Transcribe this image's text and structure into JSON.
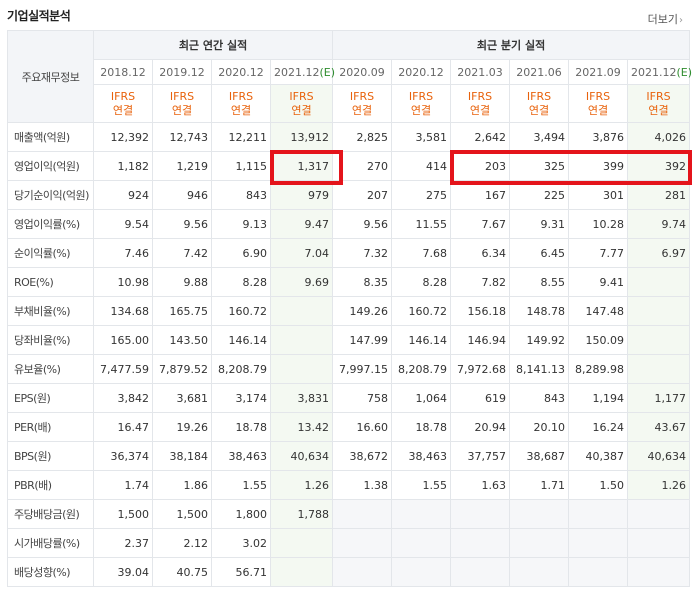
{
  "header": {
    "title": "기업실적분석",
    "more_label": "더보기",
    "more_icon": "chevron-right-icon"
  },
  "table": {
    "corner_label": "주요재무정보",
    "group_annual": "최근 연간 실적",
    "group_quarter": "최근 분기 실적",
    "annual_periods": [
      "2018.12",
      "2019.12",
      "2020.12",
      "2021.12"
    ],
    "quarter_periods": [
      "2020.09",
      "2020.12",
      "2021.03",
      "2021.06",
      "2021.09",
      "2021.12"
    ],
    "estimate_mark": "(E)",
    "basis_top": "IFRS",
    "basis_bottom": "연결",
    "rows": [
      {
        "label": "매출액(억원)",
        "values": [
          "12,392",
          "12,743",
          "12,211",
          "13,912",
          "2,825",
          "3,581",
          "2,642",
          "3,494",
          "3,876",
          "4,026"
        ]
      },
      {
        "label": "영업이익(억원)",
        "values": [
          "1,182",
          "1,219",
          "1,115",
          "1,317",
          "270",
          "414",
          "203",
          "325",
          "399",
          "392"
        ]
      },
      {
        "label": "당기순이익(억원)",
        "values": [
          "924",
          "946",
          "843",
          "979",
          "207",
          "275",
          "167",
          "225",
          "301",
          "281"
        ]
      },
      {
        "label": "영업이익률(%)",
        "values": [
          "9.54",
          "9.56",
          "9.13",
          "9.47",
          "9.56",
          "11.55",
          "7.67",
          "9.31",
          "10.28",
          "9.74"
        ]
      },
      {
        "label": "순이익률(%)",
        "values": [
          "7.46",
          "7.42",
          "6.90",
          "7.04",
          "7.32",
          "7.68",
          "6.34",
          "6.45",
          "7.77",
          "6.97"
        ]
      },
      {
        "label": "ROE(%)",
        "values": [
          "10.98",
          "9.88",
          "8.28",
          "9.69",
          "8.35",
          "8.28",
          "7.82",
          "8.55",
          "9.41",
          ""
        ]
      },
      {
        "label": "부채비율(%)",
        "values": [
          "134.68",
          "165.75",
          "160.72",
          "",
          "149.26",
          "160.72",
          "156.18",
          "148.78",
          "147.48",
          ""
        ]
      },
      {
        "label": "당좌비율(%)",
        "values": [
          "165.00",
          "143.50",
          "146.14",
          "",
          "147.99",
          "146.14",
          "146.94",
          "149.92",
          "150.09",
          ""
        ]
      },
      {
        "label": "유보율(%)",
        "values": [
          "7,477.59",
          "7,879.52",
          "8,208.79",
          "",
          "7,997.15",
          "8,208.79",
          "7,972.68",
          "8,141.13",
          "8,289.98",
          ""
        ]
      },
      {
        "label": "EPS(원)",
        "values": [
          "3,842",
          "3,681",
          "3,174",
          "3,831",
          "758",
          "1,064",
          "619",
          "843",
          "1,194",
          "1,177"
        ]
      },
      {
        "label": "PER(배)",
        "values": [
          "16.47",
          "19.26",
          "18.78",
          "13.42",
          "16.60",
          "18.78",
          "20.94",
          "20.10",
          "16.24",
          "43.67"
        ]
      },
      {
        "label": "BPS(원)",
        "values": [
          "36,374",
          "38,184",
          "38,463",
          "40,634",
          "38,672",
          "38,463",
          "37,757",
          "38,687",
          "40,387",
          "40,634"
        ]
      },
      {
        "label": "PBR(배)",
        "values": [
          "1.74",
          "1.86",
          "1.55",
          "1.26",
          "1.38",
          "1.55",
          "1.63",
          "1.71",
          "1.50",
          "1.26"
        ]
      },
      {
        "label": "주당배당금(원)",
        "values": [
          "1,500",
          "1,500",
          "1,800",
          "1,788",
          "",
          "",
          "",
          "",
          "",
          ""
        ]
      },
      {
        "label": "시가배당률(%)",
        "values": [
          "2.37",
          "2.12",
          "3.02",
          "",
          "",
          "",
          "",
          "",
          "",
          ""
        ]
      },
      {
        "label": "배당성향(%)",
        "values": [
          "39.04",
          "40.75",
          "56.71",
          "",
          "",
          "",
          "",
          "",
          "",
          ""
        ]
      }
    ]
  },
  "annotation_color": "#e4141b"
}
